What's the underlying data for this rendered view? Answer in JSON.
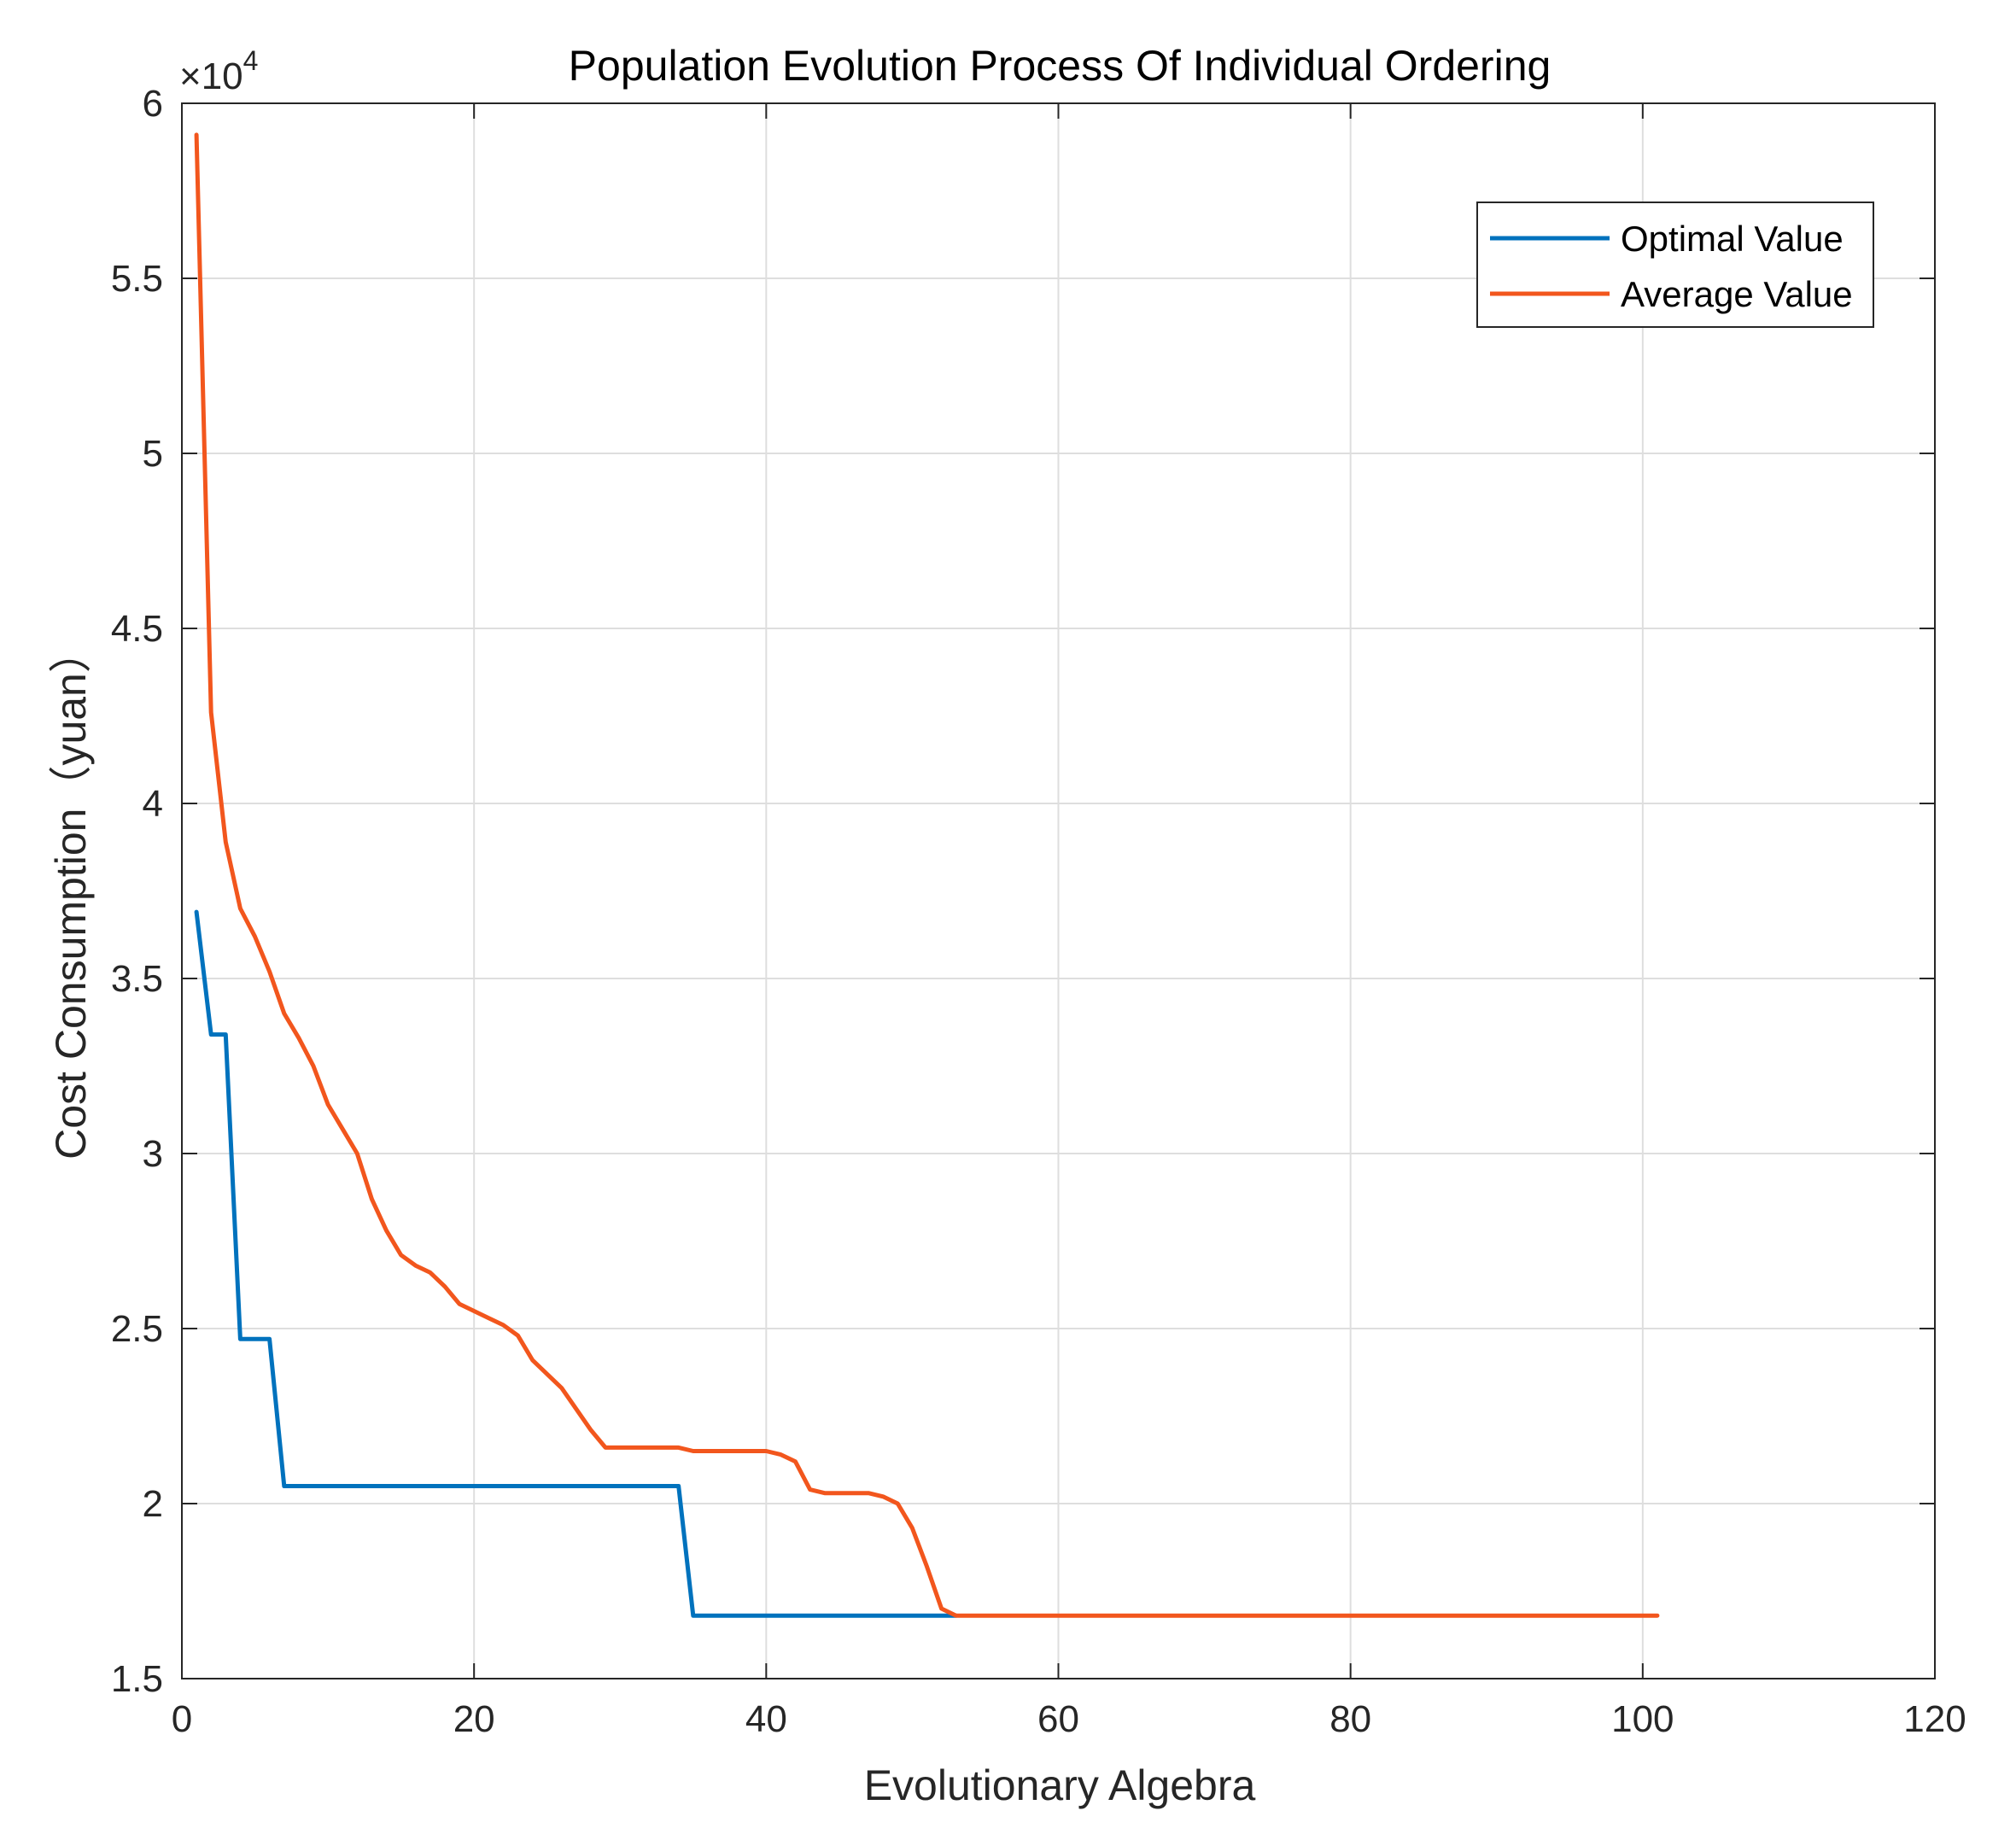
{
  "chart_data": {
    "type": "line",
    "title": "Population Evolution Process Of Individual Ordering",
    "xlabel": "Evolutionary Algebra",
    "ylabel": "Cost Consumption（yuan）",
    "y_multiplier": {
      "prefix": "×10",
      "exponent": "4"
    },
    "xlim": [
      0,
      120
    ],
    "ylim": [
      1.5,
      6
    ],
    "xticks": [
      0,
      20,
      40,
      60,
      80,
      100,
      120
    ],
    "xtick_labels": [
      "0",
      "20",
      "40",
      "60",
      "80",
      "100",
      "120"
    ],
    "yticks": [
      1.5,
      2,
      2.5,
      3,
      3.5,
      4,
      4.5,
      5,
      5.5,
      6
    ],
    "ytick_labels": [
      "1.5",
      "2",
      "2.5",
      "3",
      "3.5",
      "4",
      "4.5",
      "5",
      "5.5",
      "6"
    ],
    "grid": true,
    "legend_position": "top-right",
    "series": [
      {
        "name": "Optimal Value",
        "color": "#0072BD",
        "points": [
          [
            1,
            3.69
          ],
          [
            2,
            3.34
          ],
          [
            3,
            3.34
          ],
          [
            4,
            2.47
          ],
          [
            5,
            2.47
          ],
          [
            6,
            2.47
          ],
          [
            7,
            2.05
          ],
          [
            8,
            2.05
          ],
          [
            20,
            2.05
          ],
          [
            34,
            2.05
          ],
          [
            35,
            1.68
          ],
          [
            40,
            1.68
          ],
          [
            53,
            1.68
          ]
        ]
      },
      {
        "name": "Average Value",
        "color": "#F2561D",
        "points": [
          [
            1,
            5.91
          ],
          [
            2,
            4.26
          ],
          [
            3,
            3.89
          ],
          [
            4,
            3.7
          ],
          [
            5,
            3.62
          ],
          [
            6,
            3.52
          ],
          [
            7,
            3.4
          ],
          [
            8,
            3.33
          ],
          [
            9,
            3.25
          ],
          [
            10,
            3.14
          ],
          [
            11,
            3.07
          ],
          [
            12,
            3.0
          ],
          [
            13,
            2.87
          ],
          [
            14,
            2.78
          ],
          [
            15,
            2.71
          ],
          [
            16,
            2.68
          ],
          [
            17,
            2.66
          ],
          [
            18,
            2.62
          ],
          [
            19,
            2.57
          ],
          [
            20,
            2.55
          ],
          [
            21,
            2.53
          ],
          [
            22,
            2.51
          ],
          [
            23,
            2.48
          ],
          [
            24,
            2.41
          ],
          [
            25,
            2.37
          ],
          [
            26,
            2.33
          ],
          [
            27,
            2.27
          ],
          [
            28,
            2.21
          ],
          [
            29,
            2.16
          ],
          [
            30,
            2.16
          ],
          [
            34,
            2.16
          ],
          [
            35,
            2.15
          ],
          [
            39,
            2.15
          ],
          [
            40,
            2.15
          ],
          [
            41,
            2.14
          ],
          [
            42,
            2.12
          ],
          [
            43,
            2.04
          ],
          [
            44,
            2.03
          ],
          [
            47,
            2.03
          ],
          [
            48,
            2.02
          ],
          [
            49,
            2.0
          ],
          [
            50,
            1.93
          ],
          [
            51,
            1.82
          ],
          [
            52,
            1.7
          ],
          [
            53,
            1.68
          ],
          [
            60,
            1.68
          ],
          [
            80,
            1.68
          ],
          [
            101,
            1.68
          ]
        ]
      }
    ]
  }
}
